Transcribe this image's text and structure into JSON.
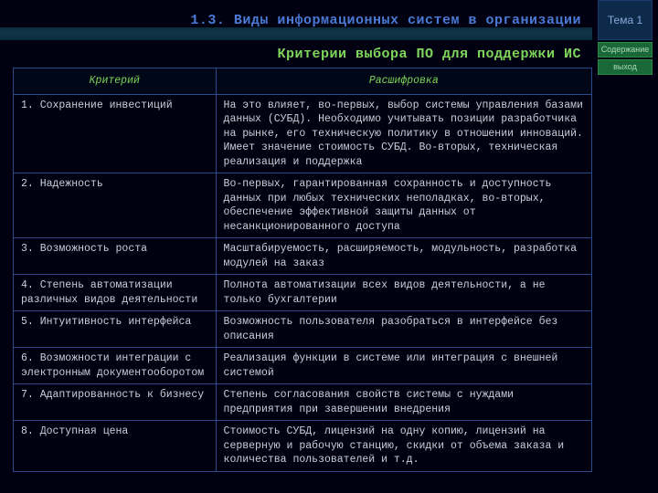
{
  "header": {
    "section_title": "1.3. Виды информационных систем в организации",
    "theme_label": "Тема 1",
    "subtitle": "Критерии выбора ПО для поддержки ИС",
    "nav_contents": "Содержание",
    "nav_exit": "выход"
  },
  "colors": {
    "page_bg": "#000010",
    "border": "#2a4a8a",
    "header_text": "#4a7ad6",
    "subtitle_text": "#7ed65a",
    "cell_text": "#c8d0d8",
    "theme_bg": "#0d2a4a",
    "nav_bg": "#1a6838"
  },
  "table": {
    "columns": [
      "Критерий",
      "Расшифровка"
    ],
    "rows": [
      [
        "1. Сохранение инвестиций",
        "На это влияет, во-первых, выбор системы управления базами данных (СУБД). Необходимо учитывать позиции разработчика на рынке, его техническую политику в отношении инноваций. Имеет значение стоимость СУБД. Во-вторых, техническая реализация и поддержка"
      ],
      [
        "2. Надежность",
        "Во-первых, гарантированная сохранность и доступность данных при любых технических неполадках, во-вторых, обеспечение эффективной защиты данных от несанкционированного доступа"
      ],
      [
        "3. Возможность роста",
        "Масштабируемость, расширяемость, модульность, разработка модулей на заказ"
      ],
      [
        "4. Степень автоматизации различных видов деятельности",
        "Полнота автоматизации всех видов деятельности, а не только бухгалтерии"
      ],
      [
        "5. Интуитивность интерфейса",
        "Возможность пользователя разобраться в интерфейсе без описания"
      ],
      [
        "6. Возможности интеграции с электронным документооборотом",
        "Реализация функции в системе или интеграция с внешней системой"
      ],
      [
        "7. Адаптированность к бизнесу",
        "Степень согласования свойств системы с нуждами предприятия при завершении внедрения"
      ],
      [
        "8. Доступная цена",
        "Стоимость СУБД, лицензий на одну копию, лицензий на серверную и рабочую станцию, скидки от объема заказа и количества пользователей и т.д."
      ]
    ]
  }
}
